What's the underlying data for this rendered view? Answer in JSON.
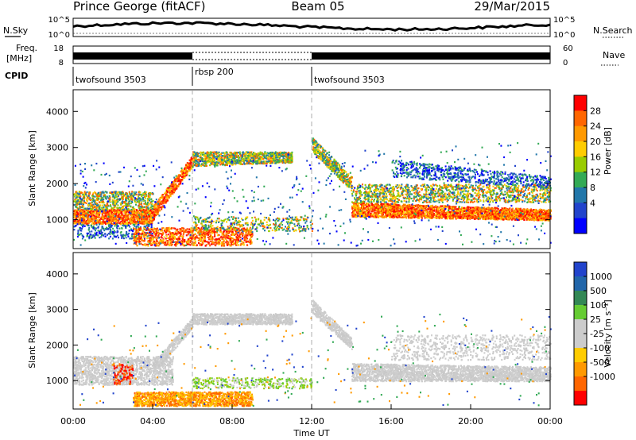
{
  "header": {
    "station": "Prince George (fitACF)",
    "beam": "Beam 05",
    "date": "29/Mar/2015"
  },
  "panels": {
    "nsky_label": "N.Sky",
    "nsearch_label": "N.Search",
    "freq_label_line1": "Freq.",
    "freq_label_line2": "[MHz]",
    "nave_label": "Nave",
    "cpid_label": "CPID",
    "nsky_ticks": [
      "10^5",
      "10^0"
    ],
    "freq_ticks": [
      "18",
      "8"
    ],
    "nave_ticks": [
      "60",
      "0"
    ],
    "cpid_segments": [
      {
        "label": "twofsound 3503",
        "start": 0,
        "end": 6
      },
      {
        "label": "rbsp 200",
        "start": 6,
        "end": 12
      },
      {
        "label": "twofsound 3503",
        "start": 12,
        "end": 24
      }
    ]
  },
  "chart_data": [
    {
      "type": "heatmap",
      "name": "power",
      "xlabel": "",
      "ylabel": "Slant Range [km]",
      "xlim": [
        0,
        24
      ],
      "ylim": [
        200,
        4600
      ],
      "yticks": [
        "1000",
        "2000",
        "3000",
        "4000"
      ],
      "colorbar_label": "Power [dB]",
      "colorbar_ticks": [
        "28",
        "24",
        "20",
        "16",
        "12",
        "8",
        "4"
      ],
      "colorbar_colors": [
        "#ff0000",
        "#ff6600",
        "#ff9900",
        "#ffcc00",
        "#99cc00",
        "#33aa55",
        "#2277aa",
        "#2244cc",
        "#0000ff"
      ]
    },
    {
      "type": "heatmap",
      "name": "velocity",
      "xlabel": "Time UT",
      "ylabel": "Slant Range [km]",
      "xlim": [
        0,
        24
      ],
      "ylim": [
        200,
        4600
      ],
      "xticks": [
        "00:00",
        "04:00",
        "08:00",
        "12:00",
        "16:00",
        "20:00",
        "00:00"
      ],
      "yticks": [
        "1000",
        "2000",
        "3000",
        "4000"
      ],
      "colorbar_label": "Velocity [m s⁻¹]",
      "colorbar_ticks": [
        "1000",
        "500",
        "100",
        "25",
        "-25",
        "-100",
        "-500",
        "-1000"
      ],
      "colorbar_colors": [
        "#2244cc",
        "#2266aa",
        "#338855",
        "#66cc33",
        "#cccccc",
        "#cccccc",
        "#ffcc00",
        "#ff9900",
        "#ff6600",
        "#ff0000"
      ]
    }
  ]
}
